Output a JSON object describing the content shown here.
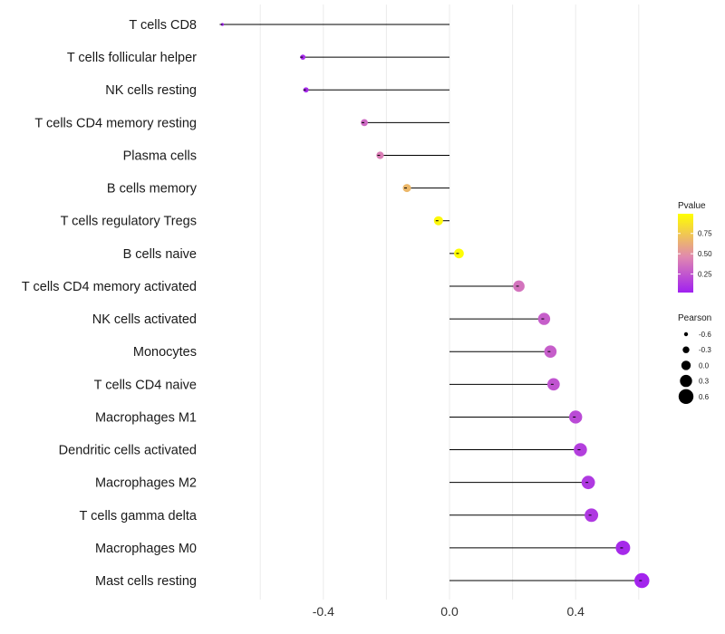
{
  "chart_data": {
    "type": "lollipop",
    "title": "",
    "xlabel": "",
    "ylabel": "",
    "xlim": [
      -0.72,
      0.64
    ],
    "xticks": [
      -0.4,
      0.0,
      0.4
    ],
    "xtick_labels": [
      "-0.4",
      "0.0",
      "0.4"
    ],
    "grid": true,
    "categories": [
      "T cells CD8",
      "T cells follicular helper",
      "NK cells resting",
      "T cells CD4 memory resting",
      "Plasma cells",
      "B cells memory",
      "T cells regulatory  Tregs ",
      "B cells naive",
      "T cells CD4 memory activated",
      "NK cells activated",
      "Monocytes",
      "T cells CD4 naive",
      "Macrophages M1",
      "Dendritic cells activated",
      "Macrophages M2",
      "T cells gamma delta",
      "Macrophages M0",
      "Mast cells resting"
    ],
    "values": [
      -0.72,
      -0.465,
      -0.455,
      -0.27,
      -0.22,
      -0.135,
      -0.035,
      0.03,
      0.22,
      0.3,
      0.32,
      0.33,
      0.4,
      0.415,
      0.44,
      0.45,
      0.55,
      0.61
    ],
    "pvalues": [
      0.01,
      0.05,
      0.05,
      0.35,
      0.45,
      0.7,
      0.97,
      0.99,
      0.4,
      0.3,
      0.3,
      0.25,
      0.2,
      0.15,
      0.12,
      0.12,
      0.05,
      0.02
    ],
    "legend": {
      "color": {
        "title": "Pvalue",
        "ticks": [
          0.25,
          0.5,
          0.75
        ],
        "tick_labels": [
          "0.25",
          "0.50",
          "0.75"
        ],
        "low_color": "#a020f0",
        "mid_color": "#e088b0",
        "high_color": "#ffff00"
      },
      "size": {
        "title": "Pearson",
        "values": [
          -0.6,
          -0.3,
          0.0,
          0.3,
          0.6
        ],
        "labels": [
          "-0.6",
          "-0.3",
          "0.0",
          "0.3",
          "0.6"
        ]
      },
      "position": "right"
    },
    "colors": {
      "grid": "#ebebeb",
      "stem": "#000000",
      "text": "#1a1a1a"
    }
  }
}
